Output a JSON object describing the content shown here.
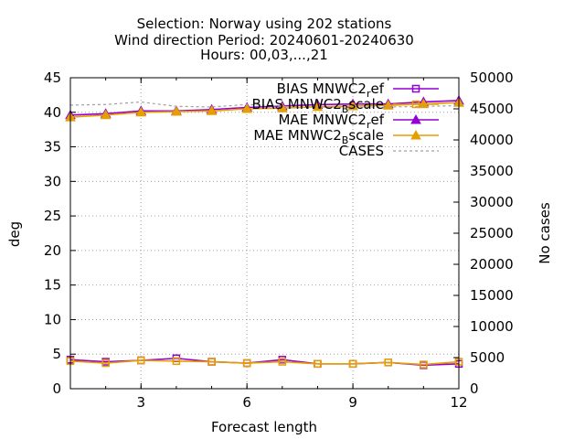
{
  "chart_data": {
    "type": "line",
    "title": [
      "Selection: Norway using   202 stations",
      "Wind direction   Period: 20240601-20240630",
      "Hours: 00,03,...,21"
    ],
    "xlabel": "Forecast length",
    "ylabel": "deg",
    "y2label": "No cases",
    "x": [
      1,
      2,
      3,
      4,
      5,
      6,
      7,
      8,
      9,
      10,
      11,
      12
    ],
    "xlim": [
      1,
      12
    ],
    "ylim": [
      0,
      45
    ],
    "y2lim": [
      0,
      50000
    ],
    "xticks": [
      "3",
      "6",
      "9",
      "12"
    ],
    "yticks": [
      "0",
      "5",
      "10",
      "15",
      "20",
      "25",
      "30",
      "35",
      "40",
      "45"
    ],
    "y2ticks": [
      "0",
      "5000",
      "10000",
      "15000",
      "20000",
      "25000",
      "30000",
      "35000",
      "40000",
      "45000",
      "50000"
    ],
    "grid": true,
    "legend_position": "top-right",
    "series": [
      {
        "name": "BIAS MNWC2_ref",
        "legend_parts": [
          "BIAS MNWC2",
          "r",
          "ef"
        ],
        "color": "#9400d3",
        "marker": "square",
        "axis": "y",
        "values": [
          4.2,
          3.9,
          4.1,
          4.4,
          3.9,
          3.7,
          4.2,
          3.6,
          3.6,
          3.8,
          3.4,
          3.6
        ]
      },
      {
        "name": "BIAS MNWC2_Bscale",
        "legend_parts": [
          "BIAS MNWC2",
          "B",
          "scale"
        ],
        "color": "#e69f00",
        "marker": "square",
        "axis": "y",
        "values": [
          4.0,
          3.7,
          4.1,
          4.0,
          3.9,
          3.7,
          3.9,
          3.6,
          3.6,
          3.8,
          3.5,
          3.9
        ]
      },
      {
        "name": "MAE MNWC2_ref",
        "legend_parts": [
          "MAE MNWC2",
          "r",
          "ef"
        ],
        "color": "#9400d3",
        "marker": "triangle",
        "axis": "y",
        "values": [
          39.6,
          39.8,
          40.2,
          40.2,
          40.4,
          40.7,
          40.9,
          41.1,
          41.2,
          41.2,
          41.5,
          41.7
        ]
      },
      {
        "name": "MAE MNWC2_Bscale",
        "legend_parts": [
          "MAE MNWC2",
          "B",
          "scale"
        ],
        "color": "#e69f00",
        "marker": "triangle",
        "axis": "y",
        "values": [
          39.3,
          39.6,
          40.0,
          40.1,
          40.2,
          40.5,
          40.6,
          40.8,
          40.9,
          41.0,
          41.2,
          41.4
        ]
      },
      {
        "name": "CASES",
        "legend_parts": [
          "CASES",
          "",
          ""
        ],
        "color": "#a0a0a0",
        "marker": "none",
        "dashed": true,
        "axis": "y2",
        "values": [
          45600,
          45700,
          46100,
          45400,
          45300,
          45700,
          45400,
          45300,
          45200,
          45300,
          45400,
          45500
        ]
      }
    ]
  }
}
